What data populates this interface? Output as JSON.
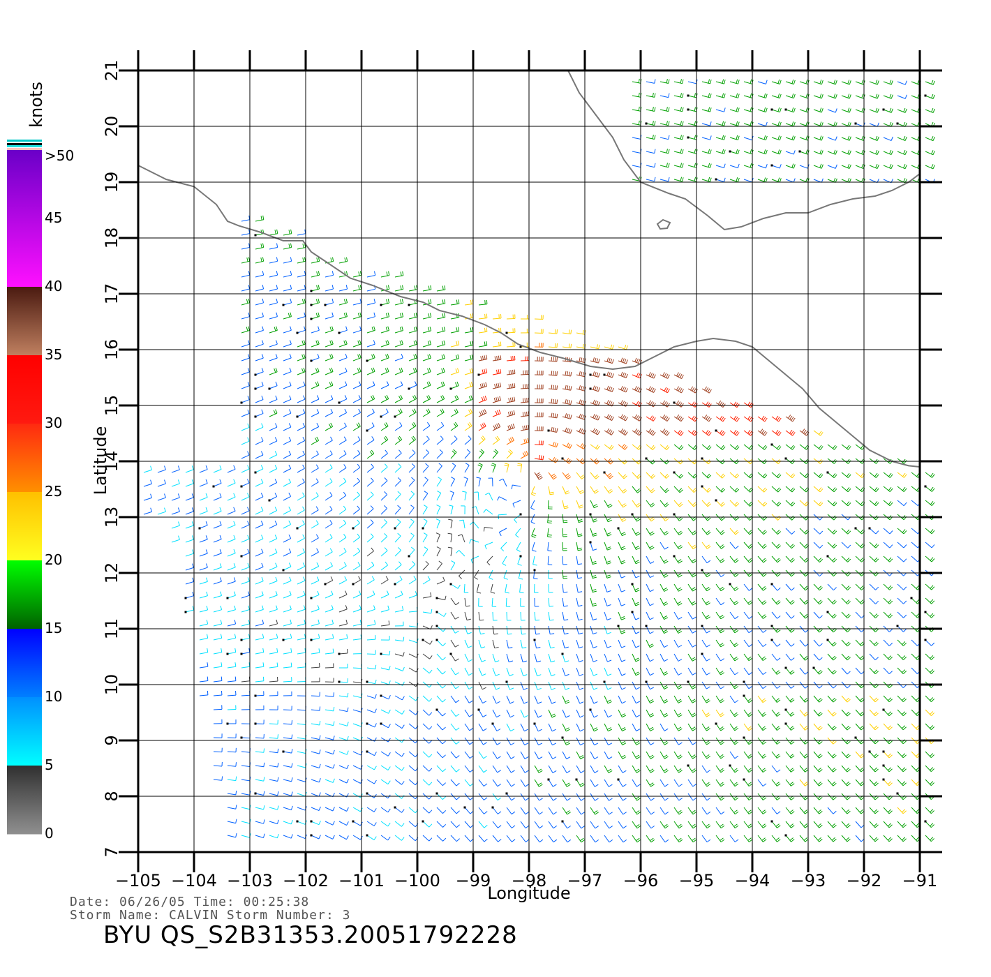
{
  "map": {
    "lon_range": [
      -105,
      -91
    ],
    "lat_range": [
      7,
      21
    ],
    "lon_ticks": [
      -105,
      -104,
      -103,
      -102,
      -101,
      -100,
      -99,
      -98,
      -97,
      -96,
      -95,
      -94,
      -93,
      -92,
      -91
    ],
    "lat_ticks": [
      7,
      8,
      9,
      10,
      11,
      12,
      13,
      14,
      15,
      16,
      17,
      18,
      19,
      20,
      21
    ],
    "lon_tick_labels": [
      "−105",
      "−104",
      "−103",
      "−102",
      "−101",
      "−100",
      "−99",
      "−98",
      "−97",
      "−96",
      "−95",
      "−94",
      "−93",
      "−92",
      "−91"
    ],
    "lat_tick_labels": [
      "7",
      "8",
      "9",
      "10",
      "11",
      "12",
      "13",
      "14",
      "15",
      "16",
      "17",
      "18",
      "19",
      "20",
      "21"
    ],
    "xlabel": "Longitude",
    "ylabel": "Latitude",
    "grid": true,
    "coastline_color": "#777777",
    "wind_barbs": "dense QuikSCAT wind barb field, colored by speed in knots"
  },
  "colorbar": {
    "unit_label": "knots",
    "tick_labels": [
      ">50",
      "45",
      "40",
      "35",
      "30",
      "25",
      "20",
      "15",
      "10",
      "5",
      "0"
    ],
    "colors": [
      "#6a00c8",
      "#ff00ff",
      "#c0a070",
      "#ff0000",
      "#ff8000",
      "#ffff00",
      "#00ff00",
      "#0000ff",
      "#00ffff",
      "#808080"
    ]
  },
  "info": {
    "date_line": "Date: 06/26/05   Time: 00:25:38",
    "storm_line": "Storm Name: CALVIN   Storm Number: 3",
    "product_title": "BYU  QS_S2B31353.20051792228"
  }
}
